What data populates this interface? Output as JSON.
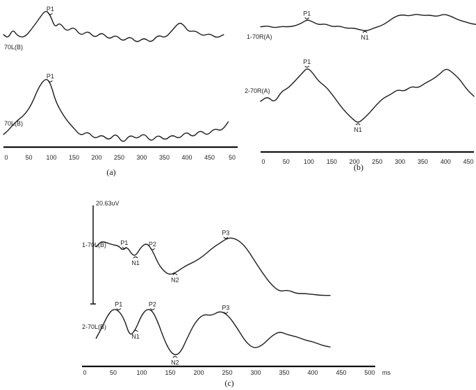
{
  "chart_data": [
    {
      "type": "line",
      "panel": "(a)",
      "xticks": [
        "0",
        "50",
        "100",
        "150",
        "200",
        "250",
        "300",
        "350",
        "400",
        "450",
        "50"
      ],
      "xlim": [
        0,
        500
      ],
      "series": [
        {
          "name": "70L(B)",
          "x": [
            0,
            10,
            20,
            30,
            45,
            60,
            75,
            90,
            100,
            110,
            120,
            135,
            150,
            165,
            180,
            195,
            210,
            225,
            240,
            255,
            270,
            285,
            300,
            315,
            330,
            345,
            360,
            375,
            385,
            395,
            410,
            425,
            440,
            455,
            470
          ],
          "y": [
            0.6,
            0.55,
            0.68,
            0.58,
            0.56,
            0.68,
            0.82,
            0.96,
            0.88,
            0.7,
            0.78,
            0.64,
            0.72,
            0.58,
            0.66,
            0.55,
            0.64,
            0.53,
            0.6,
            0.5,
            0.58,
            0.48,
            0.56,
            0.48,
            0.6,
            0.55,
            0.66,
            0.78,
            0.74,
            0.64,
            0.66,
            0.58,
            0.62,
            0.55,
            0.6
          ],
          "peaks": [
            {
              "label": "P1",
              "x": 100
            }
          ]
        },
        {
          "name": "70L(B)",
          "x": [
            0,
            10,
            20,
            30,
            45,
            60,
            75,
            90,
            100,
            110,
            120,
            135,
            150,
            165,
            180,
            195,
            210,
            225,
            240,
            255,
            270,
            285,
            300,
            315,
            330,
            345,
            360,
            375,
            390,
            405,
            420,
            435,
            450,
            465,
            480
          ],
          "y": [
            0.1,
            0.15,
            0.22,
            0.28,
            0.35,
            0.48,
            0.7,
            0.82,
            0.76,
            0.55,
            0.42,
            0.28,
            0.18,
            0.08,
            0.14,
            0.04,
            0.1,
            0.02,
            0.12,
            -0.02,
            0.1,
            0.04,
            0.12,
            0.0,
            0.1,
            0.02,
            0.1,
            0.04,
            0.14,
            0.06,
            0.16,
            0.08,
            0.18,
            0.14,
            0.26
          ],
          "peaks": [
            {
              "label": "P1",
              "x": 100
            }
          ]
        }
      ]
    },
    {
      "type": "line",
      "panel": "(b)",
      "xticks": [
        "0",
        "50",
        "100",
        "150",
        "200",
        "250",
        "300",
        "350",
        "400",
        "450"
      ],
      "xlim": [
        0,
        460
      ],
      "series": [
        {
          "name": "1-70R(A)",
          "x": [
            0,
            15,
            30,
            45,
            60,
            75,
            90,
            100,
            110,
            125,
            140,
            155,
            170,
            185,
            200,
            215,
            230,
            245,
            260,
            275,
            290,
            305,
            320,
            335,
            350,
            365,
            380,
            395,
            410,
            425,
            440,
            455,
            470
          ],
          "y": [
            0.72,
            0.74,
            0.7,
            0.73,
            0.72,
            0.74,
            0.8,
            0.86,
            0.83,
            0.76,
            0.78,
            0.72,
            0.74,
            0.69,
            0.7,
            0.66,
            0.64,
            0.7,
            0.74,
            0.82,
            0.92,
            0.96,
            0.93,
            0.97,
            0.94,
            0.95,
            0.92,
            0.97,
            0.93,
            0.86,
            0.82,
            0.78,
            0.76
          ],
          "peaks": [
            {
              "label": "P1",
              "x": 100
            },
            {
              "label": "N1",
              "x": 225
            }
          ]
        },
        {
          "name": "2-70R(A)",
          "x": [
            0,
            15,
            30,
            45,
            60,
            75,
            90,
            100,
            110,
            125,
            140,
            155,
            170,
            185,
            200,
            210,
            220,
            235,
            250,
            265,
            280,
            295,
            310,
            325,
            340,
            355,
            370,
            385,
            400,
            415,
            430,
            445,
            460
          ],
          "y": [
            0.3,
            0.36,
            0.28,
            0.42,
            0.46,
            0.55,
            0.64,
            0.7,
            0.66,
            0.54,
            0.48,
            0.38,
            0.26,
            0.16,
            0.08,
            0.04,
            0.08,
            0.16,
            0.26,
            0.34,
            0.38,
            0.44,
            0.42,
            0.48,
            0.46,
            0.52,
            0.56,
            0.62,
            0.7,
            0.64,
            0.56,
            0.44,
            0.36
          ],
          "peaks": [
            {
              "label": "P1",
              "x": 100
            },
            {
              "label": "N1",
              "x": 210
            }
          ]
        }
      ]
    },
    {
      "type": "line",
      "panel": "(c)",
      "scale_label": "20.63uV",
      "xticks": [
        "0",
        "50",
        "100",
        "150",
        "200",
        "250",
        "300",
        "350",
        "400",
        "450",
        "500"
      ],
      "xunit": "ms",
      "xlim": [
        0,
        520
      ],
      "series": [
        {
          "name": "1-70L(B)",
          "x": [
            25,
            35,
            45,
            55,
            65,
            72,
            80,
            88,
            95,
            105,
            115,
            125,
            135,
            145,
            155,
            165,
            175,
            185,
            200,
            215,
            230,
            245,
            260,
            275,
            290,
            305,
            320,
            335,
            350,
            365,
            380,
            395,
            410,
            425,
            440
          ],
          "y": [
            0.7,
            0.76,
            0.74,
            0.72,
            0.71,
            0.66,
            0.7,
            0.62,
            0.6,
            0.7,
            0.74,
            0.66,
            0.52,
            0.44,
            0.4,
            0.42,
            0.46,
            0.5,
            0.54,
            0.6,
            0.68,
            0.74,
            0.8,
            0.78,
            0.7,
            0.56,
            0.42,
            0.3,
            0.22,
            0.24,
            0.2,
            0.2,
            0.19,
            0.18,
            0.18
          ],
          "peaks": [
            {
              "label": "P1",
              "x": 75
            },
            {
              "label": "N1",
              "x": 95
            },
            {
              "label": "P2",
              "x": 125
            },
            {
              "label": "N2",
              "x": 165
            },
            {
              "label": "P3",
              "x": 255
            }
          ]
        },
        {
          "name": "2-70L(B)",
          "x": [
            25,
            35,
            45,
            55,
            65,
            75,
            85,
            95,
            105,
            115,
            125,
            135,
            145,
            155,
            165,
            175,
            185,
            200,
            215,
            230,
            245,
            260,
            275,
            290,
            305,
            320,
            335,
            350,
            365,
            380,
            395,
            410,
            425,
            440
          ],
          "y": [
            0.18,
            0.3,
            0.44,
            0.52,
            0.5,
            0.4,
            0.2,
            0.28,
            0.44,
            0.52,
            0.5,
            0.36,
            0.18,
            0.04,
            -0.02,
            0.02,
            0.16,
            0.36,
            0.46,
            0.44,
            0.5,
            0.44,
            0.3,
            0.14,
            0.06,
            0.1,
            0.2,
            0.26,
            0.22,
            0.2,
            0.16,
            0.14,
            0.1,
            0.08
          ],
          "peaks": [
            {
              "label": "P1",
              "x": 65
            },
            {
              "label": "N1",
              "x": 95
            },
            {
              "label": "P2",
              "x": 125
            },
            {
              "label": "N2",
              "x": 165
            },
            {
              "label": "P3",
              "x": 255
            }
          ]
        }
      ]
    }
  ]
}
